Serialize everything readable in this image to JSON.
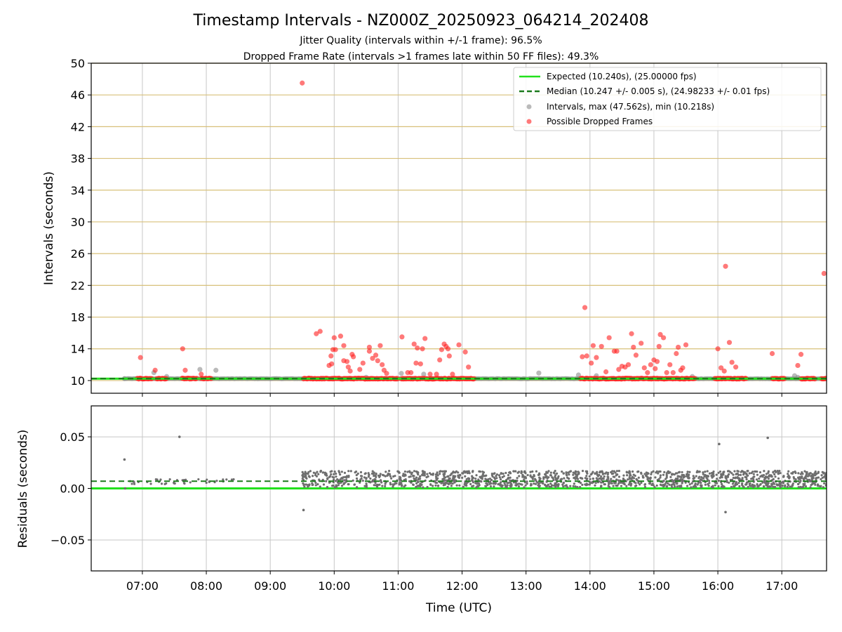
{
  "chart_data": {
    "title": "Timestamp Intervals - NZ000Z_20250923_064214_202408",
    "subtitle_1": "Jitter Quality (intervals within +/-1 frame): 96.5%",
    "subtitle_2": "Dropped Frame Rate (intervals >1 frames late within 50 FF files): 49.3%",
    "xlabel": "Time (UTC)",
    "xlim_hours": [
      6.2,
      17.7
    ],
    "x_ticks": [
      {
        "h": 7,
        "label": "07:00"
      },
      {
        "h": 8,
        "label": "08:00"
      },
      {
        "h": 9,
        "label": "09:00"
      },
      {
        "h": 10,
        "label": "10:00"
      },
      {
        "h": 11,
        "label": "11:00"
      },
      {
        "h": 12,
        "label": "12:00"
      },
      {
        "h": 13,
        "label": "13:00"
      },
      {
        "h": 14,
        "label": "14:00"
      },
      {
        "h": 15,
        "label": "15:00"
      },
      {
        "h": 16,
        "label": "16:00"
      },
      {
        "h": 17,
        "label": "17:00"
      }
    ],
    "top": {
      "type": "scatter",
      "ylabel": "Intervals (seconds)",
      "ylim": [
        8.4,
        50
      ],
      "y_ticks": [
        10,
        14,
        18,
        22,
        26,
        30,
        34,
        38,
        42,
        46,
        50
      ],
      "expected": 10.24,
      "median": 10.247,
      "legend": {
        "expected": "Expected (10.240s), (25.00000 fps)",
        "median": "Median (10.247 +/- 0.005 s), (24.98233 +/- 0.01 fps)",
        "intervals": "Intervals, max (47.562s), min (10.218s)",
        "dropped": "Possible Dropped Frames"
      },
      "gray_points": [
        [
          6.72,
          10.24
        ],
        [
          7.18,
          11.0
        ],
        [
          7.38,
          10.5
        ],
        [
          7.9,
          11.4
        ],
        [
          8.15,
          11.3
        ],
        [
          9.6,
          10.3
        ],
        [
          10.5,
          10.4
        ],
        [
          11.05,
          10.9
        ],
        [
          11.4,
          10.8
        ],
        [
          13.2,
          10.95
        ],
        [
          13.82,
          10.7
        ],
        [
          14.1,
          10.6
        ],
        [
          15.6,
          10.5
        ],
        [
          17.2,
          10.6
        ],
        [
          17.25,
          10.4
        ]
      ],
      "dropped_clusters": [
        [
          6.92,
          7.15
        ],
        [
          7.22,
          7.38
        ],
        [
          7.62,
          7.85
        ],
        [
          7.92,
          8.08
        ],
        [
          9.52,
          10.08
        ],
        [
          10.08,
          11.0
        ],
        [
          11.05,
          12.2
        ],
        [
          13.85,
          14.55
        ],
        [
          14.55,
          15.65
        ],
        [
          15.95,
          16.45
        ],
        [
          16.85,
          17.05
        ],
        [
          17.3,
          17.52
        ],
        [
          17.62,
          17.72
        ]
      ],
      "dropped_points": [
        [
          6.97,
          12.9
        ],
        [
          7.2,
          11.3
        ],
        [
          7.63,
          14.0
        ],
        [
          7.67,
          11.3
        ],
        [
          7.92,
          10.8
        ],
        [
          9.5,
          47.5
        ],
        [
          9.72,
          15.9
        ],
        [
          9.78,
          16.2
        ],
        [
          9.92,
          11.9
        ],
        [
          9.96,
          12.1
        ],
        [
          9.95,
          13.1
        ],
        [
          9.98,
          13.9
        ],
        [
          10.0,
          15.4
        ],
        [
          10.02,
          13.9
        ],
        [
          10.1,
          15.6
        ],
        [
          10.15,
          14.4
        ],
        [
          10.15,
          12.5
        ],
        [
          10.2,
          12.4
        ],
        [
          10.22,
          11.7
        ],
        [
          10.25,
          11.2
        ],
        [
          10.28,
          13.3
        ],
        [
          10.3,
          13.0
        ],
        [
          10.4,
          11.4
        ],
        [
          10.45,
          12.2
        ],
        [
          10.55,
          14.2
        ],
        [
          10.55,
          13.7
        ],
        [
          10.6,
          12.8
        ],
        [
          10.65,
          13.2
        ],
        [
          10.68,
          12.5
        ],
        [
          10.72,
          14.4
        ],
        [
          10.75,
          12.0
        ],
        [
          10.78,
          11.3
        ],
        [
          10.82,
          10.9
        ],
        [
          11.06,
          15.5
        ],
        [
          11.15,
          11.0
        ],
        [
          11.2,
          11.0
        ],
        [
          11.25,
          14.6
        ],
        [
          11.28,
          12.2
        ],
        [
          11.3,
          14.1
        ],
        [
          11.35,
          12.1
        ],
        [
          11.38,
          14.0
        ],
        [
          11.42,
          15.3
        ],
        [
          11.5,
          10.8
        ],
        [
          11.6,
          10.8
        ],
        [
          11.65,
          12.6
        ],
        [
          11.68,
          13.9
        ],
        [
          11.72,
          14.6
        ],
        [
          11.75,
          14.3
        ],
        [
          11.78,
          14.0
        ],
        [
          11.8,
          13.1
        ],
        [
          11.85,
          10.8
        ],
        [
          11.95,
          14.5
        ],
        [
          12.05,
          13.6
        ],
        [
          12.1,
          11.7
        ],
        [
          13.88,
          13.0
        ],
        [
          13.92,
          19.2
        ],
        [
          13.95,
          13.1
        ],
        [
          14.02,
          12.2
        ],
        [
          14.05,
          14.4
        ],
        [
          14.1,
          12.9
        ],
        [
          14.18,
          14.3
        ],
        [
          14.25,
          11.1
        ],
        [
          14.3,
          15.4
        ],
        [
          14.38,
          13.7
        ],
        [
          14.42,
          13.7
        ],
        [
          14.45,
          11.4
        ],
        [
          14.5,
          11.8
        ],
        [
          14.55,
          11.7
        ],
        [
          14.6,
          12.0
        ],
        [
          14.65,
          15.9
        ],
        [
          14.68,
          14.2
        ],
        [
          14.72,
          13.2
        ],
        [
          14.8,
          14.7
        ],
        [
          14.85,
          11.6
        ],
        [
          14.9,
          11.0
        ],
        [
          14.95,
          12.0
        ],
        [
          15.0,
          12.6
        ],
        [
          15.02,
          11.5
        ],
        [
          15.05,
          12.4
        ],
        [
          15.08,
          14.3
        ],
        [
          15.1,
          15.8
        ],
        [
          15.15,
          15.4
        ],
        [
          15.2,
          11.0
        ],
        [
          15.25,
          12.0
        ],
        [
          15.3,
          11.0
        ],
        [
          15.35,
          13.4
        ],
        [
          15.38,
          14.2
        ],
        [
          15.42,
          11.3
        ],
        [
          15.45,
          11.6
        ],
        [
          15.5,
          14.5
        ],
        [
          16.0,
          14.0
        ],
        [
          16.05,
          11.6
        ],
        [
          16.1,
          11.2
        ],
        [
          16.12,
          24.4
        ],
        [
          16.18,
          14.8
        ],
        [
          16.22,
          12.3
        ],
        [
          16.28,
          11.7
        ],
        [
          16.85,
          13.4
        ],
        [
          17.25,
          11.9
        ],
        [
          17.3,
          13.3
        ],
        [
          17.66,
          23.5
        ]
      ]
    },
    "bottom": {
      "type": "scatter",
      "ylabel": "Residuals (seconds)",
      "ylim": [
        -0.08,
        0.08
      ],
      "y_ticks": [
        {
          "v": 0.05,
          "label": "0.05"
        },
        {
          "v": 0.0,
          "label": "0.00"
        },
        {
          "v": -0.05,
          "label": "−0.05"
        }
      ],
      "expected": 0.0,
      "median": 0.007,
      "outliers": [
        [
          6.72,
          0.028
        ],
        [
          7.58,
          0.05
        ],
        [
          9.52,
          -0.021
        ],
        [
          16.02,
          0.043
        ],
        [
          16.12,
          -0.023
        ],
        [
          16.78,
          0.049
        ],
        [
          6.73,
          0.0
        ]
      ],
      "segments": [
        {
          "from": 6.72,
          "to": 8.5,
          "count": 38,
          "lo": 0.004,
          "hi": 0.009
        },
        {
          "from": 9.5,
          "to": 11.0,
          "count": 220,
          "lo": 0.001,
          "hi": 0.017
        },
        {
          "from": 11.0,
          "to": 17.72,
          "count": 1300,
          "lo": 0.001,
          "hi": 0.017
        }
      ]
    },
    "colors": {
      "expected": "#22e11d",
      "median": "#1b7a1b",
      "intervals": "#8c8c8c",
      "dropped": "#ff1f1f",
      "grid": "#c7c7c7",
      "hgrid_top": "#d8c07a",
      "residual_points": "#6e6e6e"
    }
  }
}
